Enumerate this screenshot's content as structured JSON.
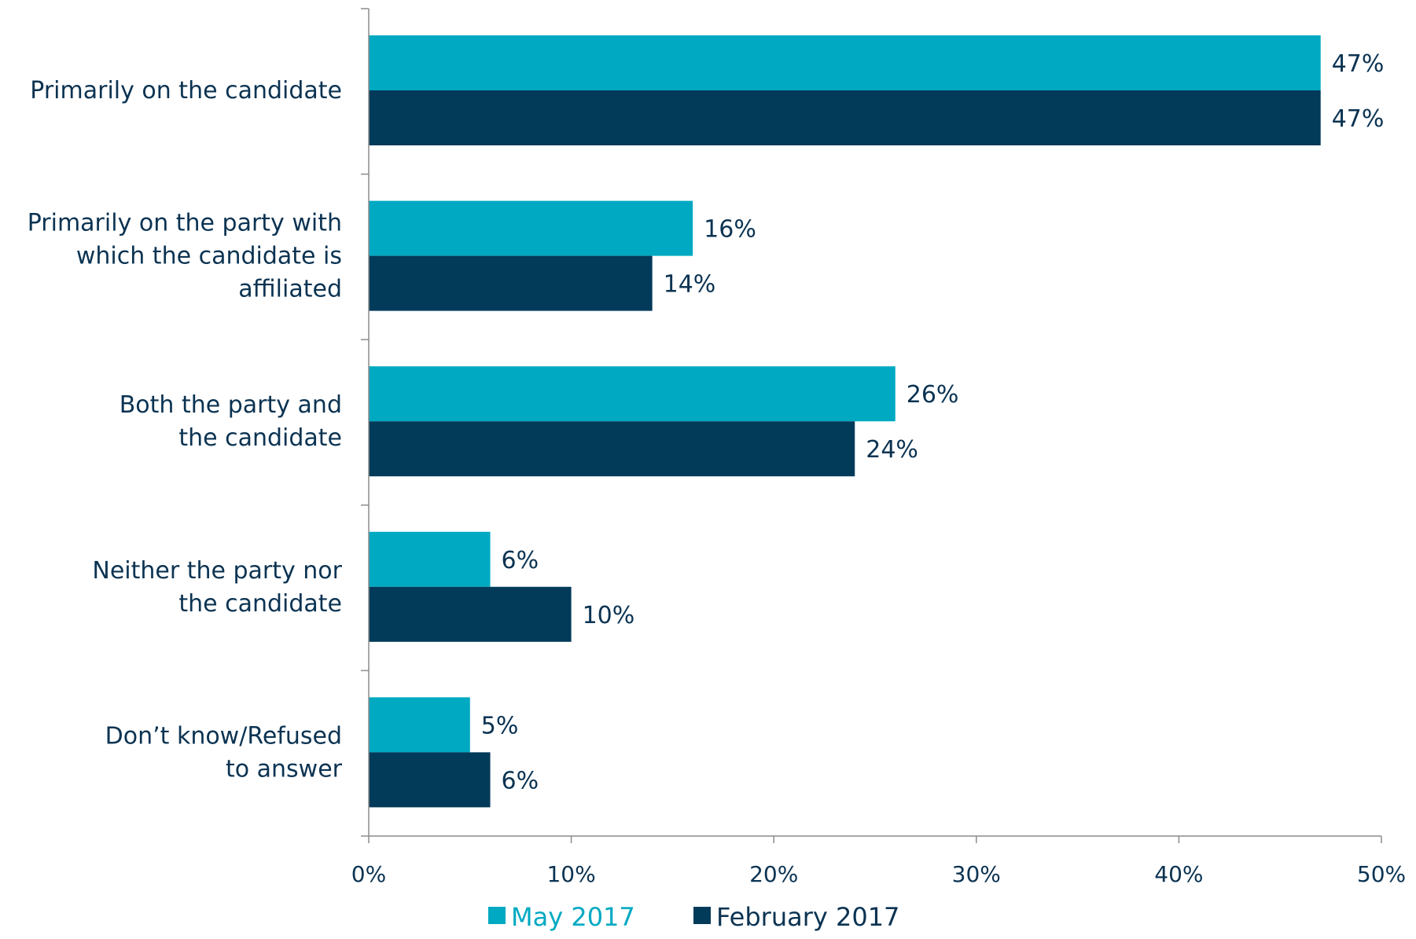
{
  "chart_data": {
    "type": "bar",
    "orientation": "horizontal",
    "categories": [
      [
        "Primarily on the candidate"
      ],
      [
        "Primarily on the party with",
        "which the candidate is",
        "affiliated"
      ],
      [
        "Both the party and",
        "the candidate"
      ],
      [
        "Neither the party nor",
        "the candidate"
      ],
      [
        "Don’t know/Refused",
        "to answer"
      ]
    ],
    "series": [
      {
        "name": "May 2017",
        "color": "#00a9c2",
        "values": [
          47,
          16,
          26,
          6,
          5
        ],
        "labels": [
          "47%",
          "16%",
          "26%",
          "6%",
          "5%"
        ]
      },
      {
        "name": "February 2017",
        "color": "#023a5a",
        "values": [
          47,
          14,
          24,
          10,
          6
        ],
        "labels": [
          "47%",
          "14%",
          "24%",
          "10%",
          "6%"
        ]
      }
    ],
    "xlim": [
      0,
      50
    ],
    "xticks": [
      0,
      10,
      20,
      30,
      40,
      50
    ],
    "xtick_labels": [
      "0%",
      "10%",
      "20%",
      "30%",
      "40%",
      "50%"
    ],
    "grid": false,
    "legend_position": "bottom",
    "title": "",
    "xlabel": "",
    "ylabel": ""
  }
}
